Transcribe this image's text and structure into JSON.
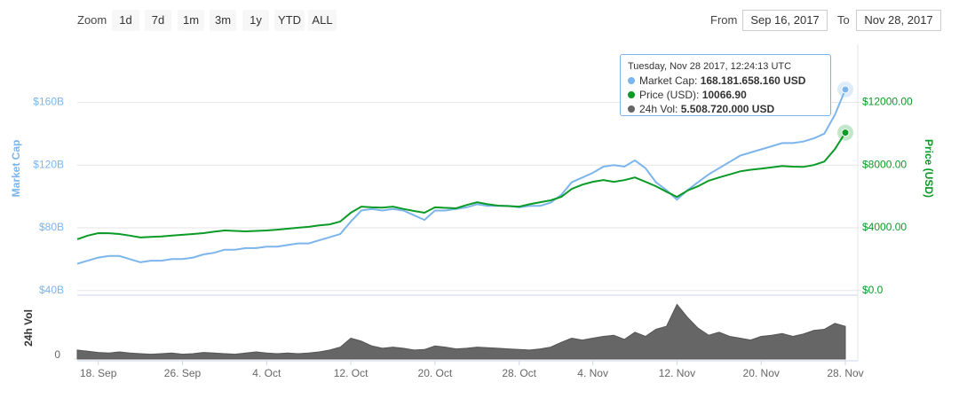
{
  "controls": {
    "zoom_label": "Zoom",
    "buttons": [
      "1d",
      "7d",
      "1m",
      "3m",
      "1y",
      "YTD",
      "ALL"
    ],
    "from_label": "From",
    "from": "Sep 16, 2017",
    "to_label": "To",
    "to": "Nov 28, 2017"
  },
  "tooltip": {
    "date": "Tuesday, Nov 28 2017, 12:24:13 UTC",
    "rows": [
      {
        "label": "Market Cap:",
        "value": "168.181.658.160 USD"
      },
      {
        "label": "Price (USD):",
        "value": "10066.90"
      },
      {
        "label": "24h Vol:",
        "value": "5.508.720.000 USD"
      }
    ]
  },
  "chart_data": [
    {
      "type": "line",
      "grid": true,
      "ylim": [
        37,
        197
      ],
      "yticks": [
        {
          "value": 40,
          "label": "$40B"
        },
        {
          "value": 80,
          "label": "$80B"
        },
        {
          "value": 120,
          "label": "$120B"
        },
        {
          "value": 160,
          "label": "$160B"
        }
      ],
      "y2lim": [
        -300,
        15700
      ],
      "y2ticks": [
        {
          "value": 0,
          "label": "$0.0"
        },
        {
          "value": 4000,
          "label": "$4000.00"
        },
        {
          "value": 8000,
          "label": "$8000.00"
        },
        {
          "value": 12000,
          "label": "$12000.00"
        }
      ],
      "series": [
        {
          "name": "Market Cap",
          "color": "#7cb5ec",
          "values": [
            57,
            59,
            61,
            62,
            62,
            60,
            58,
            59,
            59,
            60,
            60,
            61,
            63,
            64,
            66,
            66,
            67,
            67,
            68,
            68,
            69,
            70,
            70,
            72,
            74,
            76,
            84,
            91,
            92,
            91,
            92,
            91,
            88,
            85,
            91,
            91,
            92,
            93,
            95,
            94,
            94,
            94,
            93,
            94,
            94,
            96,
            101,
            109,
            112,
            115,
            119,
            120,
            119,
            123,
            118,
            109,
            104,
            98,
            104,
            109,
            114,
            118,
            122,
            126,
            128,
            130,
            132,
            134,
            134,
            135,
            137,
            140,
            152,
            168.18
          ]
        },
        {
          "name": "Price (USD)",
          "color": "#0a9a26",
          "axis": "y2",
          "values": [
            3270,
            3500,
            3660,
            3650,
            3600,
            3500,
            3380,
            3420,
            3440,
            3500,
            3550,
            3600,
            3660,
            3750,
            3830,
            3800,
            3770,
            3800,
            3830,
            3880,
            3940,
            4000,
            4060,
            4150,
            4220,
            4400,
            4960,
            5350,
            5300,
            5280,
            5350,
            5200,
            5070,
            4960,
            5300,
            5270,
            5240,
            5450,
            5630,
            5500,
            5410,
            5380,
            5350,
            5500,
            5630,
            5750,
            5970,
            6480,
            6750,
            6930,
            7040,
            6930,
            7040,
            7210,
            6930,
            6650,
            6300,
            5970,
            6370,
            6650,
            7000,
            7210,
            7400,
            7600,
            7700,
            7770,
            7850,
            7940,
            7900,
            7880,
            8000,
            8220,
            9010,
            10066.9
          ]
        }
      ]
    },
    {
      "type": "area",
      "ylabel": "24h Vol",
      "color": "#666666",
      "ylim": [
        0,
        9.7
      ],
      "yticks": [
        0
      ],
      "categories": [
        null,
        null,
        "18. Sep",
        null,
        null,
        null,
        null,
        null,
        null,
        null,
        "26. Sep",
        null,
        null,
        null,
        null,
        null,
        null,
        null,
        "4. Oct",
        null,
        null,
        null,
        null,
        null,
        null,
        null,
        "12. Oct",
        null,
        null,
        null,
        null,
        null,
        null,
        null,
        "20. Oct",
        null,
        null,
        null,
        null,
        null,
        null,
        null,
        "28. Oct",
        null,
        null,
        null,
        null,
        null,
        null,
        "4. Nov",
        null,
        null,
        null,
        null,
        null,
        null,
        null,
        "12. Nov",
        null,
        null,
        null,
        null,
        null,
        null,
        null,
        "20. Nov",
        null,
        null,
        null,
        null,
        null,
        null,
        null,
        "28. Nov"
      ],
      "values": [
        1.5,
        1.3,
        1.1,
        1.0,
        1.2,
        1.0,
        0.9,
        0.8,
        0.9,
        1.0,
        0.8,
        0.9,
        1.1,
        1.0,
        0.9,
        0.8,
        1.0,
        1.2,
        1.0,
        0.9,
        1.0,
        0.9,
        1.0,
        1.2,
        1.5,
        2.0,
        3.5,
        3.0,
        2.2,
        1.8,
        2.0,
        1.8,
        1.5,
        1.6,
        2.2,
        2.0,
        1.7,
        1.8,
        2.0,
        1.9,
        1.8,
        1.7,
        1.6,
        1.5,
        1.7,
        2.0,
        2.8,
        3.5,
        3.2,
        3.5,
        3.8,
        4.0,
        3.3,
        4.5,
        3.8,
        5.0,
        5.5,
        9.2,
        7.0,
        5.2,
        4.0,
        4.5,
        3.8,
        3.5,
        3.2,
        3.8,
        4.0,
        4.3,
        3.8,
        4.2,
        4.8,
        5.0,
        6.0,
        5.51
      ]
    }
  ]
}
